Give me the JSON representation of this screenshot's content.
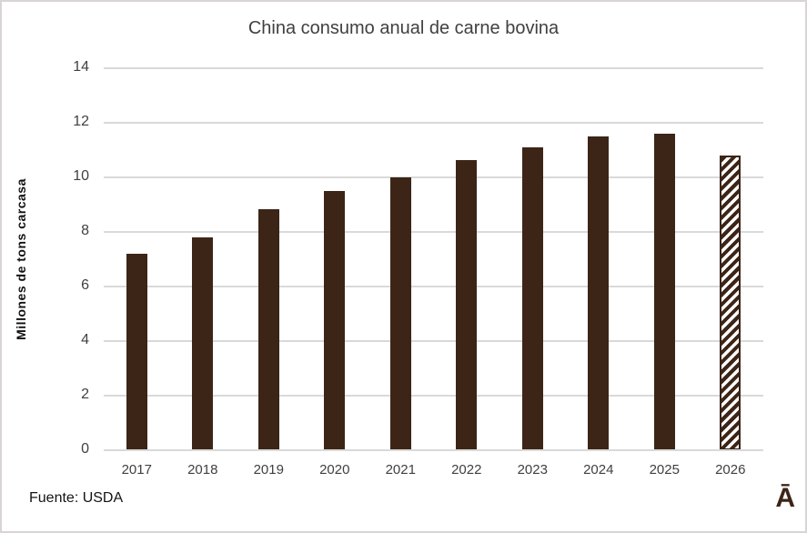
{
  "chart_data": {
    "type": "bar",
    "title": "China consumo anual de carne bovina",
    "xlabel": "",
    "ylabel": "Millones de tons carcasa",
    "categories": [
      "2017",
      "2018",
      "2019",
      "2020",
      "2021",
      "2022",
      "2023",
      "2024",
      "2025",
      "2026"
    ],
    "values": [
      7.2,
      7.8,
      8.85,
      9.5,
      10.0,
      10.65,
      11.1,
      11.5,
      11.6,
      10.8
    ],
    "ylim": [
      0,
      14
    ],
    "yticks": [
      0,
      2,
      4,
      6,
      8,
      10,
      12,
      14
    ],
    "grid": true,
    "legend": false,
    "forecast_category": "2026",
    "forecast_bar_style": "diagonal-hatch",
    "bar_color": "#3c2517",
    "gridline_color": "#d9d9d9",
    "text_color": "#404040"
  },
  "footer": {
    "source": "Fuente: USDA",
    "logo": "Ā"
  }
}
